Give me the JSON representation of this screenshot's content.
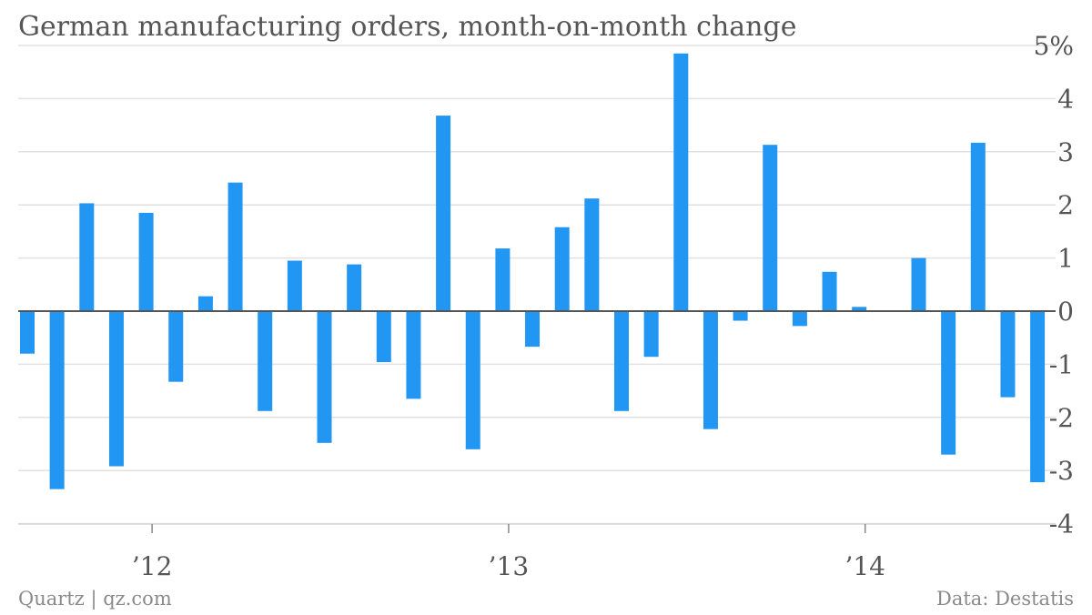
{
  "chart_data": {
    "type": "bar",
    "title": "German manufacturing orders, month-on-month change",
    "xlabel": "",
    "ylabel": "",
    "ylim": [
      -4,
      5
    ],
    "y_ticks": [
      "5%",
      "4",
      "3",
      "2",
      "1",
      "0",
      "-1",
      "-2",
      "-3",
      "-4"
    ],
    "y_tick_values": [
      5,
      4,
      3,
      2,
      1,
      0,
      -1,
      -2,
      -3,
      -4
    ],
    "x_ticks": [
      "’12",
      "’13",
      "’14"
    ],
    "x_tick_positions": [
      4.2,
      16.2,
      28.2
    ],
    "grid": true,
    "bar_color": "#2196f3",
    "values": [
      -0.8,
      -3.35,
      2.03,
      -2.92,
      1.85,
      -1.33,
      0.28,
      2.42,
      -1.88,
      0.95,
      -2.48,
      0.88,
      -0.96,
      -1.65,
      3.68,
      -2.6,
      1.18,
      -0.67,
      1.58,
      2.12,
      -1.88,
      -0.86,
      4.85,
      -2.22,
      -0.18,
      3.13,
      -0.28,
      0.74,
      0.08,
      0.0,
      1.0,
      -2.7,
      3.17,
      -1.62,
      -3.22
    ]
  },
  "footer": {
    "source_left": "Quartz | qz.com",
    "source_right": "Data: Destatis"
  }
}
